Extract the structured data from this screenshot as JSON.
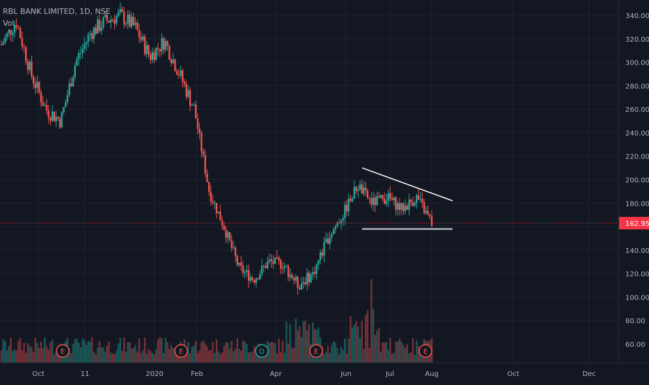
{
  "chart_data": {
    "type": "candlestick",
    "symbol_label": "RBL BANK LIMITED, 1D, NSE",
    "volume_label": "Vol",
    "y_axis": {
      "ticks": [
        60,
        80,
        100,
        120,
        140,
        160,
        180,
        200,
        220,
        240,
        260,
        280,
        300,
        320,
        340
      ],
      "tick_labels": [
        "60.00",
        "80.00",
        "100.00",
        "120.00",
        "140.00",
        "160.00",
        "180.00",
        "200.00",
        "220.00",
        "240.00",
        "260.00",
        "280.00",
        "300.00",
        "320.00",
        "340.00"
      ],
      "ylim": [
        50,
        345
      ]
    },
    "x_axis": {
      "labels": [
        "Oct",
        "11",
        "2020",
        "Feb",
        "Apr",
        "Jun",
        "Jul",
        "Aug",
        "Oct",
        "Dec"
      ]
    },
    "last_price": {
      "value": 162.95,
      "label": "162.95",
      "color": "#f23645"
    },
    "colors": {
      "up": "#26a69a",
      "down": "#ef5350",
      "background": "#131722",
      "grid": "#1f2330",
      "axis_text": "#b2b5be",
      "trendline": "#ffffff"
    },
    "key_points": [
      {
        "date": "Sep start",
        "close": 315
      },
      {
        "date": "early Sep",
        "close": 335
      },
      {
        "date": "late Sep",
        "close": 290
      },
      {
        "date": "Oct",
        "close": 260
      },
      {
        "date": "mid Oct",
        "close": 250
      },
      {
        "date": "early Nov",
        "close": 300
      },
      {
        "date": "Nov",
        "close": 325
      },
      {
        "date": "Dec",
        "close": 335
      },
      {
        "date": "Jan",
        "close": 340
      },
      {
        "date": "late Jan",
        "close": 330
      },
      {
        "date": "Feb",
        "close": 305
      },
      {
        "date": "mid Feb",
        "close": 318
      },
      {
        "date": "late Feb",
        "close": 290
      },
      {
        "date": "early Mar",
        "close": 260
      },
      {
        "date": "mid Mar",
        "close": 190
      },
      {
        "date": "late Mar",
        "close": 160
      },
      {
        "date": "early Apr",
        "close": 125
      },
      {
        "date": "mid Apr",
        "close": 115
      },
      {
        "date": "late Apr",
        "close": 130
      },
      {
        "date": "early May",
        "close": 128
      },
      {
        "date": "mid May",
        "close": 110
      },
      {
        "date": "late May",
        "close": 120
      },
      {
        "date": "early Jun",
        "close": 150
      },
      {
        "date": "mid Jun",
        "close": 170
      },
      {
        "date": "late Jun",
        "close": 195
      },
      {
        "date": "early Jul",
        "close": 180
      },
      {
        "date": "mid Jul",
        "close": 185
      },
      {
        "date": "late Jul",
        "close": 175
      },
      {
        "date": "end Jul",
        "close": 185
      },
      {
        "date": "Aug",
        "close": 162.95
      }
    ],
    "events": [
      {
        "label": "E",
        "position": "Oct"
      },
      {
        "label": "E",
        "position": "Jan"
      },
      {
        "label": "D",
        "position": "Mar"
      },
      {
        "label": "E",
        "position": "May"
      },
      {
        "label": "E",
        "position": "late Jul"
      }
    ],
    "annotations": [
      {
        "type": "trendline",
        "description": "descending resistance",
        "from": {
          "date": "mid Jun",
          "price": 210
        },
        "to": {
          "date": "early Aug",
          "price": 182
        }
      },
      {
        "type": "trendline",
        "description": "horizontal support",
        "from": {
          "date": "mid Jun",
          "price": 158
        },
        "to": {
          "date": "early Aug",
          "price": 158
        }
      }
    ]
  }
}
